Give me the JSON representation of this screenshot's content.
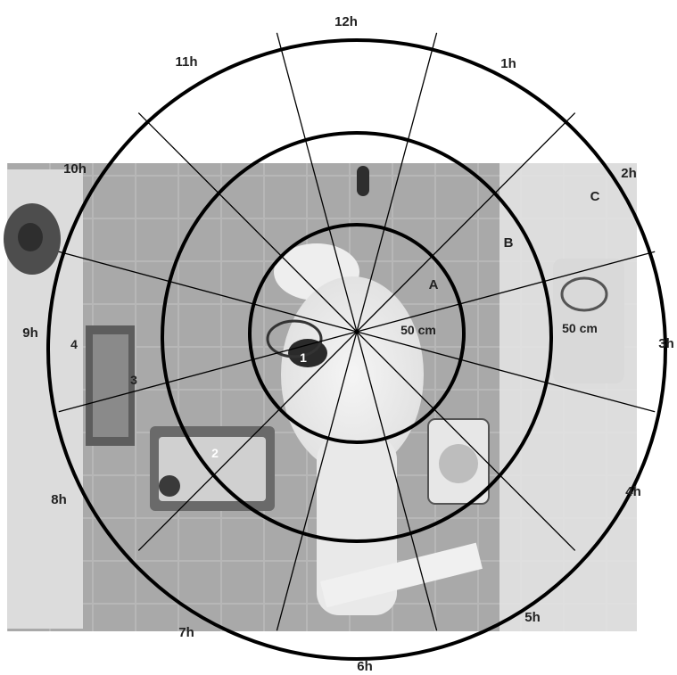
{
  "clock_labels": [
    "12h",
    "1h",
    "2h",
    "3h",
    "4h",
    "5h",
    "6h",
    "7h",
    "8h",
    "9h",
    "10h",
    "11h"
  ],
  "ring_labels": [
    "A",
    "B",
    "C"
  ],
  "distance_labels": [
    "50 cm",
    "50 cm"
  ],
  "object_labels": [
    "1",
    "2",
    "3",
    "4"
  ],
  "colors": {
    "ring": "#000000",
    "spoke": "#000000",
    "photo_floor": "#b9b9b9",
    "label": "#222222"
  }
}
